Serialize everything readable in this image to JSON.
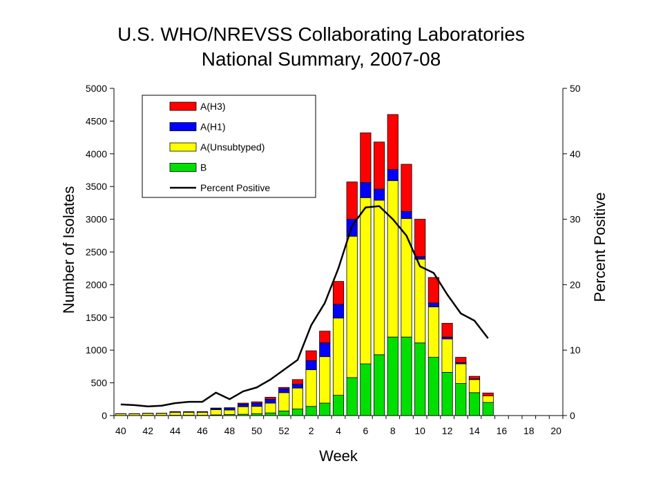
{
  "chart_data": {
    "type": "bar",
    "stacked": true,
    "title": [
      "U.S. WHO/NREVSS Collaborating Laboratories",
      "National Summary, 2007-08"
    ],
    "xlabel": "Week",
    "ylabel": "Number of Isolates",
    "y2label": "Percent Positive",
    "ylim": [
      0,
      5000
    ],
    "y2lim": [
      0,
      50
    ],
    "yticks": [
      0,
      500,
      1000,
      1500,
      2000,
      2500,
      3000,
      3500,
      4000,
      4500,
      5000
    ],
    "y2ticks": [
      0,
      10,
      20,
      30,
      40,
      50
    ],
    "categories": [
      "40",
      "41",
      "42",
      "43",
      "44",
      "45",
      "46",
      "47",
      "48",
      "49",
      "50",
      "51",
      "52",
      "1",
      "2",
      "3",
      "4",
      "5",
      "6",
      "7",
      "8",
      "9",
      "10",
      "11",
      "12",
      "13",
      "14",
      "15",
      "16",
      "17",
      "18",
      "19",
      "20"
    ],
    "xtick_labels": [
      "40",
      "42",
      "44",
      "46",
      "48",
      "50",
      "52",
      "2",
      "4",
      "6",
      "8",
      "10",
      "12",
      "14",
      "16",
      "18",
      "20"
    ],
    "series": [
      {
        "name": "B",
        "color": "#00E000",
        "values": [
          2,
          2,
          3,
          3,
          5,
          5,
          5,
          10,
          15,
          20,
          30,
          40,
          70,
          100,
          140,
          190,
          310,
          580,
          790,
          930,
          1200,
          1200,
          1110,
          890,
          660,
          490,
          350,
          200,
          null,
          null,
          null,
          null,
          null
        ]
      },
      {
        "name": "A(Unsubtyped)",
        "color": "#FFFF00",
        "values": [
          25,
          25,
          30,
          30,
          45,
          45,
          45,
          80,
          70,
          115,
          110,
          150,
          280,
          320,
          560,
          710,
          1180,
          2160,
          2540,
          2360,
          2390,
          1810,
          1280,
          770,
          510,
          300,
          200,
          100,
          null,
          null,
          null,
          null,
          null
        ]
      },
      {
        "name": "A(H1)",
        "color": "#0000FF",
        "values": [
          2,
          2,
          3,
          3,
          10,
          10,
          10,
          20,
          30,
          40,
          50,
          60,
          60,
          60,
          140,
          210,
          210,
          260,
          230,
          170,
          170,
          110,
          40,
          60,
          30,
          20,
          10,
          0,
          null,
          null,
          null,
          null,
          null
        ]
      },
      {
        "name": "A(H3)",
        "color": "#FF0000",
        "values": [
          0,
          0,
          0,
          0,
          0,
          0,
          0,
          5,
          5,
          15,
          20,
          30,
          20,
          70,
          150,
          180,
          350,
          570,
          760,
          720,
          840,
          720,
          570,
          390,
          210,
          80,
          40,
          45,
          null,
          null,
          null,
          null,
          null
        ]
      }
    ],
    "line": {
      "name": "Percent Positive",
      "color": "#000000",
      "axis": "right",
      "values": [
        1.7,
        1.6,
        1.4,
        1.5,
        1.9,
        2.1,
        2.1,
        3.5,
        2.5,
        3.7,
        4.3,
        5.5,
        7.0,
        8.5,
        13.8,
        17.2,
        22.5,
        29.0,
        31.8,
        32.0,
        30.0,
        27.5,
        22.8,
        21.8,
        18.5,
        15.6,
        14.5,
        11.8,
        null,
        null,
        null,
        null,
        null
      ]
    },
    "legend": {
      "position": "top-left",
      "entries": [
        "A(H3)",
        "A(H1)",
        "A(Unsubtyped)",
        "B",
        "Percent Positive"
      ]
    },
    "grid": false
  }
}
